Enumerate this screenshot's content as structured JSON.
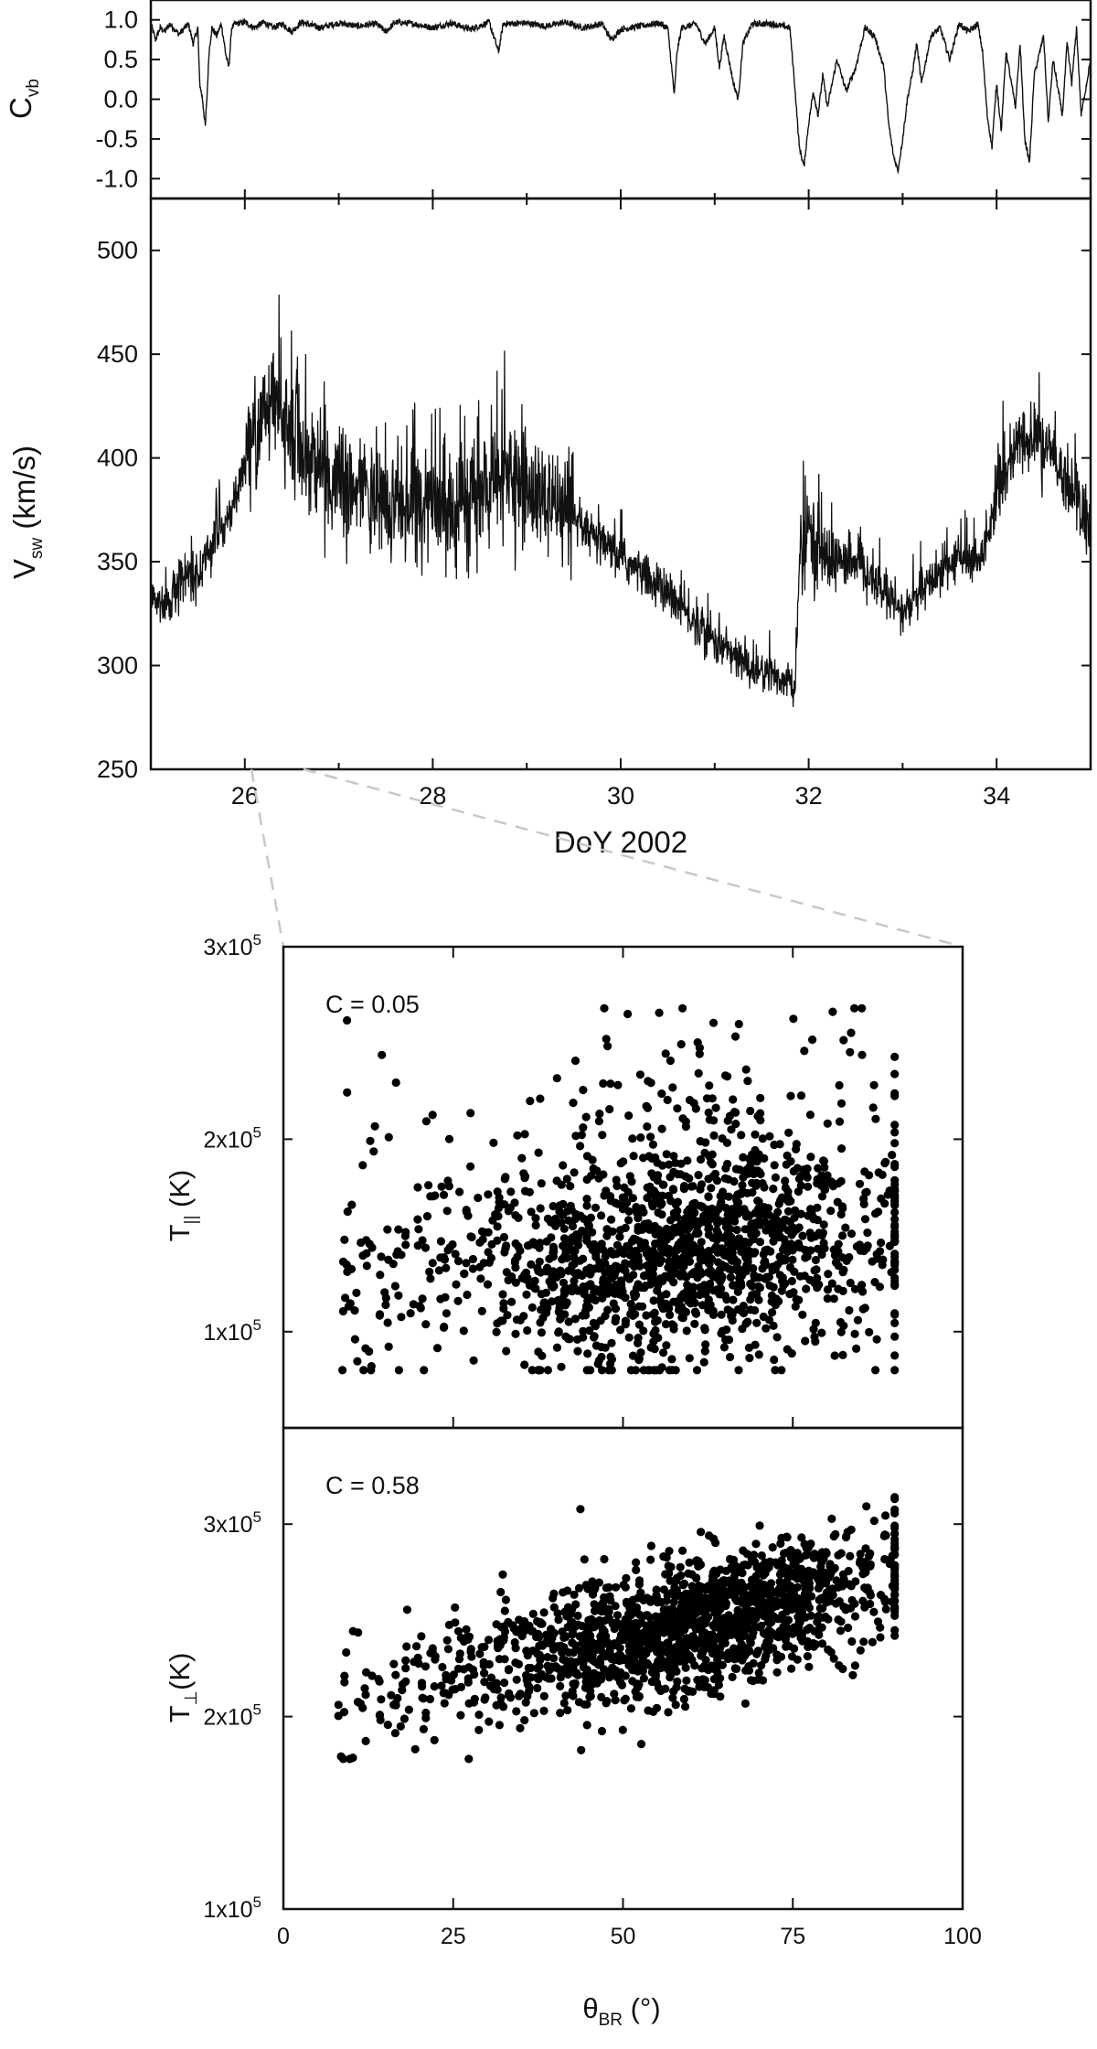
{
  "colors": {
    "line": "#111111",
    "dots": "#000000",
    "zoom": "#c8c8c8"
  },
  "chart_data": [
    {
      "type": "line",
      "id": "cvb-timeseries",
      "xlabel": "",
      "ylabel": {
        "main": "C",
        "sub": "vb"
      },
      "xlim": [
        25,
        35
      ],
      "ylim": [
        -1.25,
        1.25
      ],
      "yticks": [
        1.0,
        0.5,
        0.0,
        -0.5,
        -1.0
      ],
      "ytick_labels": [
        "1.0",
        "0.5",
        "0.0",
        "-0.5",
        "-1.0"
      ],
      "points": [
        [
          25.0,
          0.95
        ],
        [
          25.05,
          0.75
        ],
        [
          25.1,
          0.9
        ],
        [
          25.15,
          0.85
        ],
        [
          25.2,
          0.95
        ],
        [
          25.3,
          0.82
        ],
        [
          25.4,
          0.95
        ],
        [
          25.45,
          0.7
        ],
        [
          25.5,
          0.9
        ],
        [
          25.52,
          0.2
        ],
        [
          25.55,
          0.0
        ],
        [
          25.58,
          -0.35
        ],
        [
          25.6,
          0.1
        ],
        [
          25.62,
          0.6
        ],
        [
          25.65,
          0.9
        ],
        [
          25.7,
          0.8
        ],
        [
          25.75,
          0.95
        ],
        [
          25.8,
          0.55
        ],
        [
          25.83,
          0.4
        ],
        [
          25.86,
          0.9
        ],
        [
          25.9,
          0.95
        ],
        [
          26.0,
          0.97
        ],
        [
          26.1,
          0.9
        ],
        [
          26.2,
          0.97
        ],
        [
          26.3,
          0.9
        ],
        [
          26.4,
          0.95
        ],
        [
          26.5,
          0.85
        ],
        [
          26.6,
          0.97
        ],
        [
          26.8,
          0.9
        ],
        [
          27.0,
          0.96
        ],
        [
          27.2,
          0.92
        ],
        [
          27.4,
          0.95
        ],
        [
          27.5,
          0.85
        ],
        [
          27.6,
          0.97
        ],
        [
          27.8,
          0.95
        ],
        [
          28.0,
          0.9
        ],
        [
          28.2,
          0.96
        ],
        [
          28.4,
          0.88
        ],
        [
          28.6,
          0.97
        ],
        [
          28.7,
          0.6
        ],
        [
          28.75,
          0.95
        ],
        [
          29.0,
          0.96
        ],
        [
          29.2,
          0.92
        ],
        [
          29.4,
          0.97
        ],
        [
          29.6,
          0.9
        ],
        [
          29.8,
          0.95
        ],
        [
          29.9,
          0.75
        ],
        [
          30.0,
          0.88
        ],
        [
          30.2,
          0.92
        ],
        [
          30.4,
          0.96
        ],
        [
          30.5,
          0.9
        ],
        [
          30.55,
          0.3
        ],
        [
          30.57,
          0.05
        ],
        [
          30.6,
          0.6
        ],
        [
          30.65,
          0.9
        ],
        [
          30.8,
          0.95
        ],
        [
          30.9,
          0.7
        ],
        [
          31.0,
          0.9
        ],
        [
          31.05,
          0.4
        ],
        [
          31.1,
          0.8
        ],
        [
          31.2,
          0.2
        ],
        [
          31.25,
          0.0
        ],
        [
          31.3,
          0.7
        ],
        [
          31.4,
          0.95
        ],
        [
          31.6,
          0.95
        ],
        [
          31.8,
          0.9
        ],
        [
          31.85,
          0.2
        ],
        [
          31.9,
          -0.6
        ],
        [
          31.95,
          -0.85
        ],
        [
          32.0,
          -0.3
        ],
        [
          32.05,
          0.1
        ],
        [
          32.1,
          -0.2
        ],
        [
          32.15,
          0.3
        ],
        [
          32.2,
          -0.1
        ],
        [
          32.3,
          0.5
        ],
        [
          32.4,
          0.1
        ],
        [
          32.5,
          0.4
        ],
        [
          32.6,
          0.9
        ],
        [
          32.7,
          0.8
        ],
        [
          32.8,
          0.4
        ],
        [
          32.85,
          -0.3
        ],
        [
          32.9,
          -0.7
        ],
        [
          32.95,
          -0.9
        ],
        [
          33.0,
          -0.5
        ],
        [
          33.05,
          0.0
        ],
        [
          33.1,
          0.3
        ],
        [
          33.15,
          0.7
        ],
        [
          33.2,
          0.2
        ],
        [
          33.3,
          0.8
        ],
        [
          33.4,
          0.9
        ],
        [
          33.5,
          0.5
        ],
        [
          33.6,
          0.95
        ],
        [
          33.7,
          0.85
        ],
        [
          33.8,
          0.95
        ],
        [
          33.85,
          0.6
        ],
        [
          33.9,
          -0.2
        ],
        [
          33.95,
          -0.6
        ],
        [
          34.0,
          0.2
        ],
        [
          34.05,
          -0.4
        ],
        [
          34.1,
          0.6
        ],
        [
          34.2,
          -0.1
        ],
        [
          34.25,
          0.7
        ],
        [
          34.3,
          -0.5
        ],
        [
          34.35,
          -0.8
        ],
        [
          34.4,
          0.3
        ],
        [
          34.5,
          0.8
        ],
        [
          34.55,
          -0.3
        ],
        [
          34.6,
          0.5
        ],
        [
          34.7,
          -0.2
        ],
        [
          34.75,
          0.7
        ],
        [
          34.8,
          0.2
        ],
        [
          34.85,
          0.9
        ],
        [
          34.9,
          -0.2
        ],
        [
          35.0,
          0.5
        ]
      ]
    },
    {
      "type": "line",
      "id": "vsw-timeseries",
      "xlabel": "DoY 2002",
      "ylabel": {
        "main": "V",
        "sub": "sw",
        "unit": " (km/s)"
      },
      "xlim": [
        25,
        35
      ],
      "ylim": [
        250,
        525
      ],
      "yticks": [
        250,
        300,
        350,
        400,
        450,
        500
      ],
      "ytick_labels": [
        "250",
        "300",
        "350",
        "400",
        "450",
        "500"
      ],
      "xticks": [
        26,
        28,
        30,
        32,
        34
      ],
      "xtick_labels": [
        "26",
        "28",
        "30",
        "32",
        "34"
      ],
      "points": [
        [
          25.0,
          335
        ],
        [
          25.1,
          330
        ],
        [
          25.2,
          328
        ],
        [
          25.3,
          340
        ],
        [
          25.4,
          345
        ],
        [
          25.5,
          342
        ],
        [
          25.6,
          355
        ],
        [
          25.7,
          360
        ],
        [
          25.8,
          370
        ],
        [
          25.9,
          380
        ],
        [
          26.0,
          395
        ],
        [
          26.1,
          410
        ],
        [
          26.2,
          420
        ],
        [
          26.3,
          425
        ],
        [
          26.4,
          420
        ],
        [
          26.5,
          412
        ],
        [
          26.6,
          405
        ],
        [
          26.7,
          400
        ],
        [
          26.8,
          395
        ],
        [
          26.9,
          390
        ],
        [
          27.0,
          385
        ],
        [
          27.2,
          383
        ],
        [
          27.4,
          380
        ],
        [
          27.6,
          378
        ],
        [
          27.8,
          380
        ],
        [
          28.0,
          376
        ],
        [
          28.2,
          374
        ],
        [
          28.4,
          378
        ],
        [
          28.6,
          385
        ],
        [
          28.8,
          390
        ],
        [
          29.0,
          385
        ],
        [
          29.2,
          378
        ],
        [
          29.4,
          370
        ],
        [
          29.6,
          365
        ],
        [
          29.8,
          358
        ],
        [
          30.0,
          352
        ],
        [
          30.2,
          345
        ],
        [
          30.4,
          338
        ],
        [
          30.6,
          330
        ],
        [
          30.8,
          320
        ],
        [
          31.0,
          312
        ],
        [
          31.2,
          305
        ],
        [
          31.4,
          298
        ],
        [
          31.6,
          295
        ],
        [
          31.8,
          293
        ],
        [
          31.85,
          285
        ],
        [
          31.9,
          345
        ],
        [
          32.0,
          365
        ],
        [
          32.1,
          358
        ],
        [
          32.2,
          352
        ],
        [
          32.4,
          350
        ],
        [
          32.6,
          345
        ],
        [
          32.8,
          335
        ],
        [
          33.0,
          325
        ],
        [
          33.2,
          335
        ],
        [
          33.4,
          345
        ],
        [
          33.6,
          352
        ],
        [
          33.8,
          348
        ],
        [
          34.0,
          380
        ],
        [
          34.2,
          405
        ],
        [
          34.4,
          410
        ],
        [
          34.6,
          400
        ],
        [
          34.8,
          385
        ],
        [
          35.0,
          365
        ]
      ]
    },
    {
      "type": "scatter",
      "id": "tpar-vs-theta",
      "annotation": "C = 0.05",
      "xlim": [
        0,
        100
      ],
      "ylim": [
        50000,
        300000
      ],
      "ylabel": {
        "main": "T",
        "sub": "||",
        "unit": " (K)"
      },
      "yticks": [
        100000,
        200000,
        300000
      ],
      "ytick_labels": [
        {
          "mant": "1x10",
          "exp": "5"
        },
        {
          "mant": "2x10",
          "exp": "5"
        },
        {
          "mant": "3x10",
          "exp": "5"
        }
      ],
      "n_points": 1600,
      "mean_y": 140000
    },
    {
      "type": "scatter",
      "id": "tperp-vs-theta",
      "annotation": "C = 0.58",
      "xlim": [
        0,
        100
      ],
      "ylim": [
        100000,
        350000
      ],
      "xlabel": {
        "main": "θ",
        "sub": "BR",
        "unit": " (°)"
      },
      "ylabel": {
        "main": "T",
        "sub": "⊥",
        "unit": "(K)"
      },
      "xticks": [
        0,
        25,
        50,
        75,
        100
      ],
      "xtick_labels": [
        "0",
        "25",
        "50",
        "75",
        "100"
      ],
      "yticks": [
        100000,
        200000,
        300000
      ],
      "ytick_labels": [
        {
          "mant": "1x10",
          "exp": "5"
        },
        {
          "mant": "2x10",
          "exp": "5"
        },
        {
          "mant": "3x10",
          "exp": "5"
        }
      ],
      "n_points": 1600,
      "trend": {
        "slope": 800,
        "intercept": 200000
      }
    }
  ]
}
